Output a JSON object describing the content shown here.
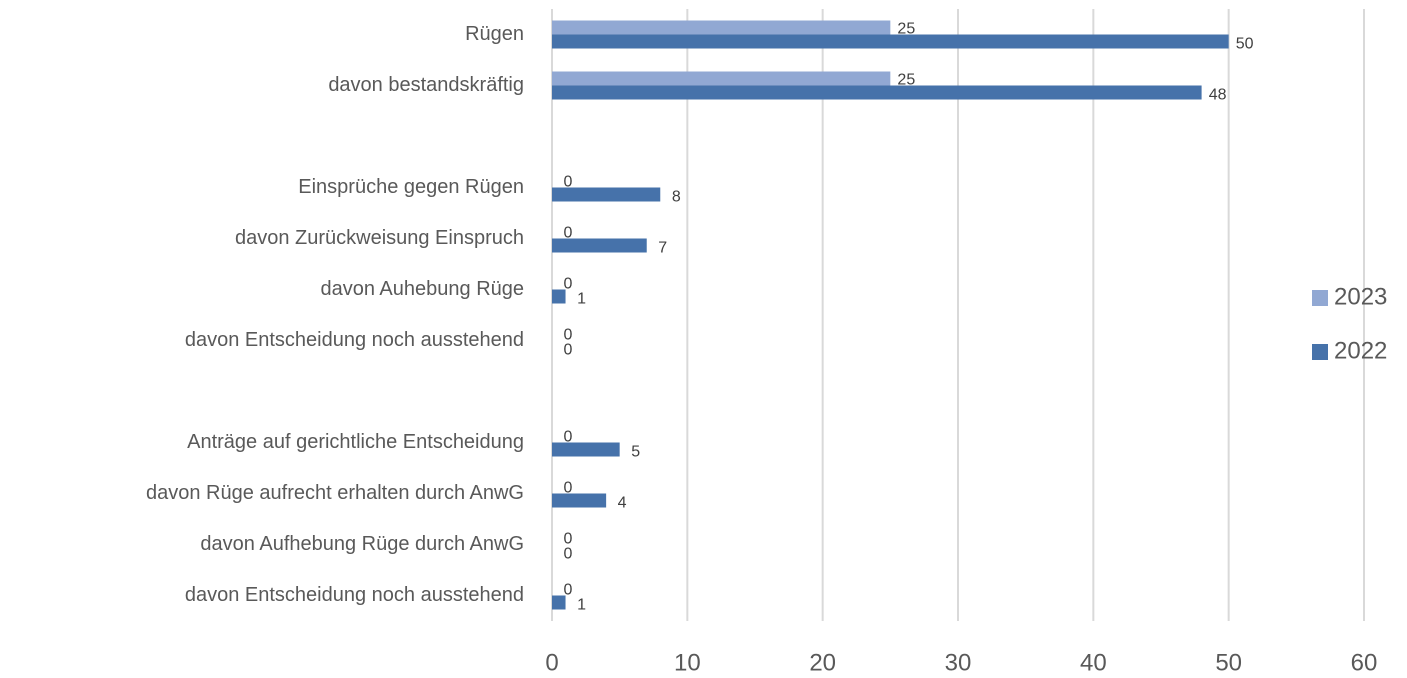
{
  "chart_data": {
    "type": "barh",
    "categories": [
      "Rügen",
      "davon bestandskräftig",
      null,
      "Einsprüche gegen Rügen",
      "davon Zurückweisung Einspruch",
      "davon Auhebung Rüge",
      "davon Entscheidung noch ausstehend",
      null,
      "Anträge auf gerichtliche Entscheidung",
      "davon Rüge aufrecht erhalten durch AnwG",
      "davon Aufhebung Rüge durch AnwG",
      "davon Entscheidung noch ausstehend"
    ],
    "series": [
      {
        "name": "2023",
        "color": "#91a8d3",
        "values": [
          25,
          25,
          null,
          0,
          0,
          0,
          0,
          null,
          0,
          0,
          0,
          0
        ]
      },
      {
        "name": "2022",
        "color": "#4672aa",
        "values": [
          50,
          48,
          null,
          8,
          7,
          1,
          0,
          null,
          5,
          4,
          0,
          1
        ]
      }
    ],
    "xlim": [
      0,
      60
    ],
    "xticks": [
      0,
      10,
      20,
      30,
      40,
      50,
      60
    ],
    "grid": true,
    "legend": "right"
  }
}
